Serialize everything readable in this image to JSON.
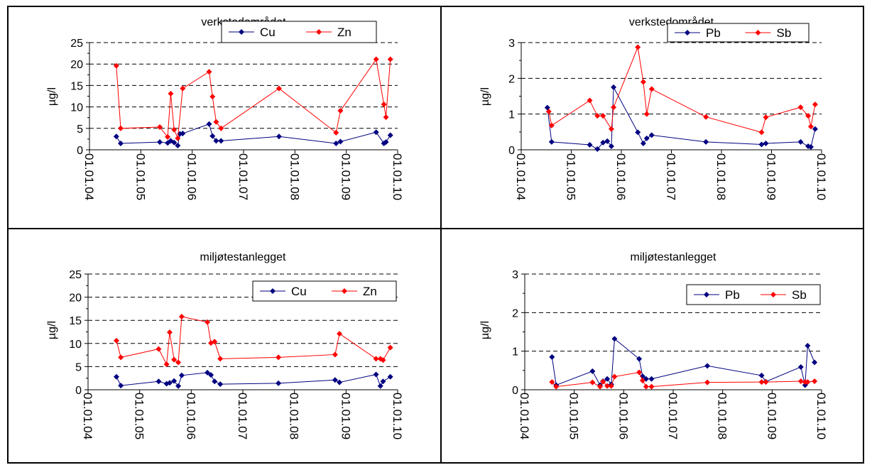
{
  "chart_data": [
    {
      "type": "line",
      "title": "verkstedområdet",
      "ylabel": "µg/l",
      "ylim": [
        0,
        25
      ],
      "yticks": [
        0,
        5,
        10,
        15,
        20,
        25
      ],
      "xlim": [
        "2004-01-01",
        "2010-01-01"
      ],
      "xticks": [
        "01.01.04",
        "01.01.05",
        "01.01.06",
        "01.01.07",
        "01.01.08",
        "01.01.09",
        "01.01.10"
      ],
      "grid": "horizontal-dashed",
      "legend_position": "top-right",
      "series": [
        {
          "name": "Cu",
          "color": "#000080",
          "x": [
            "2004-07-10",
            "2004-08-10",
            "2005-05-15",
            "2005-07-10",
            "2005-08-01",
            "2005-08-25",
            "2005-09-20",
            "2005-10-05",
            "2005-10-25",
            "2006-05-01",
            "2006-05-25",
            "2006-06-20",
            "2006-07-25",
            "2007-09-10",
            "2008-10-20",
            "2008-11-20",
            "2009-08-01",
            "2009-09-25",
            "2009-10-10",
            "2009-11-10"
          ],
          "y": [
            3.1,
            1.5,
            1.8,
            1.6,
            2.1,
            1.7,
            1.0,
            3.7,
            3.8,
            6.0,
            3.2,
            2.1,
            2.1,
            3.1,
            1.5,
            1.9,
            4.1,
            1.5,
            1.8,
            3.4
          ]
        },
        {
          "name": "Zn",
          "color": "#ff0000",
          "x": [
            "2004-07-10",
            "2004-08-10",
            "2005-05-15",
            "2005-07-10",
            "2005-08-01",
            "2005-08-25",
            "2005-09-20",
            "2005-10-25",
            "2006-05-01",
            "2006-05-25",
            "2006-06-20",
            "2006-07-25",
            "2007-09-10",
            "2008-10-20",
            "2008-11-20",
            "2009-08-01",
            "2009-09-25",
            "2009-10-10",
            "2009-11-10"
          ],
          "y": [
            19.6,
            5.0,
            5.3,
            3.0,
            13.1,
            4.7,
            2.7,
            14.3,
            18.2,
            12.4,
            6.5,
            5.0,
            14.3,
            4.0,
            9.1,
            21.1,
            10.6,
            7.6,
            21.1
          ]
        }
      ]
    },
    {
      "type": "line",
      "title": "verkstedområdet",
      "ylabel": "µg/l",
      "ylim": [
        0,
        3
      ],
      "yticks": [
        0,
        1,
        2,
        3
      ],
      "xlim": [
        "2004-01-01",
        "2010-01-01"
      ],
      "xticks": [
        "01.01.04",
        "01.01.05",
        "01.01.06",
        "01.01.07",
        "01.01.08",
        "01.01.09",
        "01.01.10"
      ],
      "grid": "horizontal-dashed",
      "legend_position": "top-right",
      "series": [
        {
          "name": "Pb",
          "color": "#000080",
          "x": [
            "2004-07-10",
            "2004-08-10",
            "2005-05-15",
            "2005-07-10",
            "2005-08-20",
            "2005-09-20",
            "2005-10-20",
            "2005-11-05",
            "2006-05-01",
            "2006-06-10",
            "2006-07-05",
            "2006-08-10",
            "2007-09-10",
            "2008-10-20",
            "2008-11-20",
            "2009-08-01",
            "2009-09-25",
            "2009-10-15",
            "2009-11-15"
          ],
          "y": [
            1.18,
            0.22,
            0.14,
            0.02,
            0.2,
            0.24,
            0.1,
            1.75,
            0.49,
            0.18,
            0.32,
            0.41,
            0.22,
            0.15,
            0.18,
            0.22,
            0.1,
            0.08,
            0.58
          ]
        },
        {
          "name": "Sb",
          "color": "#ff0000",
          "x": [
            "2004-07-20",
            "2004-08-10",
            "2005-05-15",
            "2005-07-10",
            "2005-08-20",
            "2005-10-20",
            "2005-11-05",
            "2006-05-01",
            "2006-06-10",
            "2006-07-05",
            "2006-08-10",
            "2007-09-10",
            "2008-10-20",
            "2008-11-20",
            "2009-08-01",
            "2009-09-25",
            "2009-10-15",
            "2009-11-15"
          ],
          "y": [
            1.07,
            0.68,
            1.38,
            0.95,
            0.95,
            0.58,
            1.19,
            2.87,
            1.9,
            1.0,
            1.7,
            0.92,
            0.49,
            0.91,
            1.19,
            0.95,
            0.65,
            1.27
          ]
        }
      ]
    },
    {
      "type": "line",
      "title": "miljøtestanlegget",
      "ylabel": "µg/l",
      "ylim": [
        0,
        25
      ],
      "yticks": [
        0,
        5,
        10,
        15,
        20,
        25
      ],
      "xlim": [
        "2004-01-01",
        "2010-01-01"
      ],
      "xticks": [
        "01.01.04",
        "01.01.05",
        "01.01.06",
        "01.01.07",
        "01.01.08",
        "01.01.09",
        "01.01.10"
      ],
      "grid": "horizontal-dashed",
      "legend_position": "top-right",
      "series": [
        {
          "name": "Cu",
          "color": "#000080",
          "x": [
            "2004-07-20",
            "2004-08-20",
            "2005-05-15",
            "2005-07-10",
            "2005-08-01",
            "2005-09-01",
            "2005-10-01",
            "2005-10-25",
            "2006-04-25",
            "2006-05-20",
            "2006-06-15",
            "2006-07-25",
            "2007-09-10",
            "2008-10-15",
            "2008-11-15",
            "2009-08-01",
            "2009-09-01",
            "2009-09-20",
            "2009-11-10"
          ],
          "y": [
            2.8,
            0.9,
            1.8,
            1.3,
            1.5,
            1.9,
            0.8,
            3.1,
            3.7,
            3.2,
            1.8,
            1.2,
            1.4,
            2.1,
            1.6,
            3.3,
            0.8,
            1.8,
            2.8
          ]
        },
        {
          "name": "Zn",
          "color": "#ff0000",
          "x": [
            "2004-07-20",
            "2004-08-20",
            "2005-05-15",
            "2005-07-10",
            "2005-08-01",
            "2005-09-01",
            "2005-10-01",
            "2005-10-25",
            "2006-04-25",
            "2006-05-20",
            "2006-06-15",
            "2006-07-25",
            "2007-09-10",
            "2008-10-15",
            "2008-11-15",
            "2009-08-01",
            "2009-09-01",
            "2009-09-20",
            "2009-11-10"
          ],
          "y": [
            10.6,
            7.0,
            8.8,
            5.5,
            12.4,
            6.5,
            5.9,
            15.8,
            14.6,
            10.1,
            10.4,
            6.7,
            7.0,
            7.6,
            12.1,
            6.7,
            6.7,
            6.4,
            9.1
          ]
        }
      ]
    },
    {
      "type": "line",
      "title": "miljøtestanlegget",
      "ylabel": "µg/l",
      "ylim": [
        0,
        3
      ],
      "yticks": [
        0,
        1,
        2,
        3
      ],
      "xlim": [
        "2004-01-01",
        "2010-01-01"
      ],
      "xticks": [
        "01.01.04",
        "01.01.05",
        "01.01.06",
        "01.01.07",
        "01.01.08",
        "01.01.09",
        "01.01.10"
      ],
      "grid": "horizontal-dashed",
      "legend_position": "top-right",
      "series": [
        {
          "name": "Pb",
          "color": "#000080",
          "x": [
            "2004-07-20",
            "2004-08-20",
            "2005-05-15",
            "2005-07-10",
            "2005-08-01",
            "2005-09-01",
            "2005-10-01",
            "2005-10-25",
            "2006-04-25",
            "2006-05-20",
            "2006-06-15",
            "2006-07-25",
            "2007-09-10",
            "2008-10-15",
            "2008-11-15",
            "2009-08-01",
            "2009-09-01",
            "2009-09-20",
            "2009-11-10"
          ],
          "y": [
            0.85,
            0.12,
            0.48,
            0.12,
            0.22,
            0.28,
            0.14,
            1.32,
            0.8,
            0.35,
            0.28,
            0.28,
            0.62,
            0.37,
            0.21,
            0.59,
            0.12,
            1.14,
            0.71
          ]
        },
        {
          "name": "Sb",
          "color": "#ff0000",
          "x": [
            "2004-07-20",
            "2004-08-20",
            "2005-05-15",
            "2005-07-10",
            "2005-08-01",
            "2005-09-01",
            "2005-10-01",
            "2005-10-25",
            "2006-04-25",
            "2006-05-20",
            "2006-06-15",
            "2006-07-25",
            "2007-09-10",
            "2008-10-15",
            "2008-11-15",
            "2009-08-01",
            "2009-09-01",
            "2009-09-20",
            "2009-11-10"
          ],
          "y": [
            0.2,
            0.08,
            0.19,
            0.08,
            0.21,
            0.1,
            0.1,
            0.34,
            0.45,
            0.24,
            0.08,
            0.08,
            0.19,
            0.2,
            0.2,
            0.22,
            0.2,
            0.2,
            0.22
          ]
        }
      ]
    }
  ]
}
